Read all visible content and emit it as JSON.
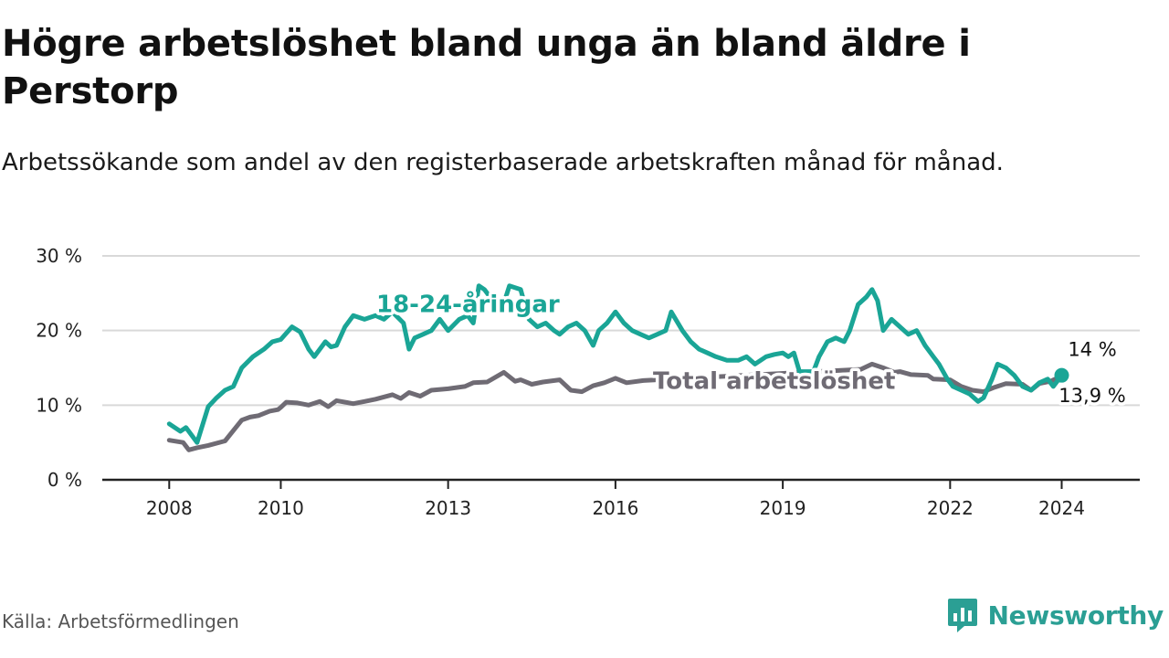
{
  "title": "Högre arbetslöshet bland unga än bland äldre i Perstorp",
  "subtitle": "Arbetssökande som andel av den registerbaserade arbetskraften månad för månad.",
  "source": "Källa: Arbetsförmedlingen",
  "brand": "Newsworthy",
  "colors": {
    "youth": "#1aa596",
    "total": "#6f6b74",
    "grid": "#d9d9d9",
    "axis": "#222222",
    "brand": "#2b9f94"
  },
  "chart_data": {
    "type": "line",
    "title": "Högre arbetslöshet bland unga än bland äldre i Perstorp",
    "xlabel": "",
    "ylabel": "",
    "ylim": [
      0,
      30
    ],
    "xlim": [
      2006.8,
      2025.4
    ],
    "yticks": [
      0,
      10,
      20,
      30
    ],
    "ytick_labels": [
      "0 %",
      "10 %",
      "20 %",
      "30 %"
    ],
    "xticks": [
      2008,
      2010,
      2013,
      2016,
      2019,
      2022,
      2024
    ],
    "xtick_labels": [
      "2008",
      "2010",
      "2013",
      "2016",
      "2019",
      "2022",
      "2024"
    ],
    "grid": true,
    "series": [
      {
        "name": "Total arbetslöshet",
        "label": "Total arbetslöshet",
        "end_value_label": "13,9 %",
        "x": [
          2008.0,
          2008.25,
          2008.35,
          2008.5,
          2008.7,
          2009.0,
          2009.3,
          2009.45,
          2009.6,
          2009.8,
          2009.95,
          2010.0,
          2010.1,
          2010.3,
          2010.5,
          2010.7,
          2010.85,
          2011.0,
          2011.3,
          2011.5,
          2011.7,
          2012.0,
          2012.15,
          2012.3,
          2012.5,
          2012.7,
          2013.0,
          2013.3,
          2013.45,
          2013.7,
          2014.0,
          2014.2,
          2014.3,
          2014.5,
          2014.7,
          2015.0,
          2015.2,
          2015.4,
          2015.6,
          2015.8,
          2016.0,
          2016.2,
          2016.5,
          2020.4,
          2020.6,
          2020.8,
          2021.0,
          2021.1,
          2021.3,
          2021.6,
          2021.7,
          2022.0,
          2022.2,
          2022.4,
          2022.6,
          2022.8,
          2023.0,
          2023.3,
          2023.45,
          2023.6,
          2023.8,
          2024.0
        ],
        "y": [
          5.3,
          5.0,
          4.0,
          4.3,
          4.6,
          5.2,
          8.0,
          8.4,
          8.6,
          9.2,
          9.4,
          9.7,
          10.4,
          10.3,
          10.0,
          10.5,
          9.8,
          10.6,
          10.2,
          10.5,
          10.8,
          11.4,
          10.9,
          11.7,
          11.2,
          12.0,
          12.2,
          12.5,
          13.0,
          13.1,
          14.4,
          13.2,
          13.4,
          12.8,
          13.1,
          13.4,
          12.0,
          11.8,
          12.6,
          13.0,
          13.6,
          13.0,
          13.3,
          14.8,
          15.5,
          15.0,
          14.4,
          14.5,
          14.1,
          14.0,
          13.5,
          13.4,
          12.5,
          12.0,
          11.8,
          12.4,
          12.9,
          12.8,
          12.0,
          12.9,
          13.2,
          13.9
        ]
      },
      {
        "name": "18-24-åringar",
        "label": "18-24-åringar",
        "end_value_label": "14 %",
        "x": [
          2008.0,
          2008.2,
          2008.3,
          2008.4,
          2008.5,
          2008.7,
          2008.85,
          2009.0,
          2009.15,
          2009.3,
          2009.5,
          2009.7,
          2009.85,
          2010.0,
          2010.2,
          2010.35,
          2010.5,
          2010.6,
          2010.8,
          2010.9,
          2011.0,
          2011.15,
          2011.3,
          2011.5,
          2011.7,
          2011.85,
          2012.0,
          2012.2,
          2012.3,
          2012.4,
          2012.55,
          2012.7,
          2012.85,
          2013.0,
          2013.2,
          2013.35,
          2013.45,
          2013.55,
          2013.65,
          2013.8,
          2013.95,
          2014.1,
          2014.3,
          2014.45,
          2014.6,
          2014.75,
          2014.9,
          2015.0,
          2015.15,
          2015.3,
          2015.45,
          2015.6,
          2015.7,
          2015.85,
          2016.0,
          2016.15,
          2016.3,
          2016.45,
          2016.6,
          2016.75,
          2016.9,
          2017.0,
          2017.2,
          2017.35,
          2017.5,
          2017.65,
          2017.8,
          2018.0,
          2018.2,
          2018.35,
          2018.5,
          2018.7,
          2018.85,
          2019.0,
          2019.1,
          2019.2,
          2019.3,
          2019.55,
          2019.65,
          2019.8,
          2019.95,
          2020.1,
          2020.2,
          2020.35,
          2020.5,
          2020.6,
          2020.7,
          2020.8,
          2020.95,
          2021.1,
          2021.25,
          2021.4,
          2021.55,
          2021.7,
          2021.8,
          2021.95,
          2022.05,
          2022.2,
          2022.35,
          2022.5,
          2022.6,
          2022.75,
          2022.85,
          2023.0,
          2023.15,
          2023.3,
          2023.45,
          2023.6,
          2023.75,
          2023.85,
          2024.0
        ],
        "y": [
          7.5,
          6.5,
          7.0,
          6.0,
          5.0,
          9.8,
          11.0,
          12.0,
          12.5,
          15.0,
          16.5,
          17.5,
          18.5,
          18.8,
          20.5,
          19.8,
          17.5,
          16.5,
          18.5,
          17.8,
          18.0,
          20.5,
          22.0,
          21.5,
          22.0,
          21.5,
          22.5,
          21.0,
          17.5,
          19.0,
          19.5,
          20.0,
          21.5,
          20.0,
          21.5,
          22.0,
          21.0,
          26.0,
          25.5,
          24.0,
          22.5,
          26.0,
          25.5,
          21.5,
          20.5,
          21.0,
          20.0,
          19.5,
          20.5,
          21.0,
          20.0,
          18.0,
          20.0,
          21.0,
          22.5,
          21.0,
          20.0,
          19.5,
          19.0,
          19.5,
          20.0,
          22.5,
          20.0,
          18.5,
          17.5,
          17.0,
          16.5,
          16.0,
          16.0,
          16.5,
          15.5,
          16.5,
          16.8,
          17.0,
          16.5,
          17.0,
          14.5,
          14.5,
          16.5,
          18.5,
          19.0,
          18.5,
          20.0,
          23.5,
          24.5,
          25.5,
          24.0,
          20.0,
          21.5,
          20.5,
          19.5,
          20.0,
          18.0,
          16.5,
          15.5,
          13.5,
          12.5,
          12.0,
          11.5,
          10.5,
          11.0,
          13.5,
          15.5,
          15.0,
          14.0,
          12.5,
          12.0,
          13.0,
          13.5,
          12.5,
          14.0
        ]
      }
    ]
  }
}
